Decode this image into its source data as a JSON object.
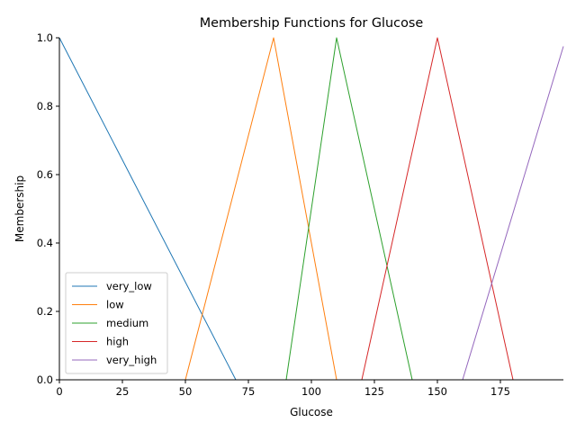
{
  "chart_data": {
    "type": "line",
    "title": "Membership Functions for Glucose",
    "xlabel": "Glucose",
    "ylabel": "Membership",
    "xlim": [
      0,
      200
    ],
    "ylim": [
      0,
      1.0
    ],
    "xticks": [
      0,
      25,
      50,
      75,
      100,
      125,
      150,
      175
    ],
    "yticks": [
      0.0,
      0.2,
      0.4,
      0.6,
      0.8,
      1.0
    ],
    "xtick_labels": [
      "0",
      "25",
      "50",
      "75",
      "100",
      "125",
      "150",
      "175"
    ],
    "ytick_labels": [
      "0.0",
      "0.2",
      "0.4",
      "0.6",
      "0.8",
      "1.0"
    ],
    "grid": false,
    "legend_position": "lower-left",
    "series": [
      {
        "name": "very_low",
        "color": "#1f77b4",
        "x": [
          0,
          70,
          200
        ],
        "y": [
          1,
          0,
          0
        ]
      },
      {
        "name": "low",
        "color": "#ff7f0e",
        "x": [
          0,
          50,
          85,
          110,
          200
        ],
        "y": [
          0,
          0,
          1,
          0,
          0
        ]
      },
      {
        "name": "medium",
        "color": "#2ca02c",
        "x": [
          0,
          90,
          110,
          140,
          200
        ],
        "y": [
          0,
          0,
          1,
          0,
          0
        ]
      },
      {
        "name": "high",
        "color": "#d62728",
        "x": [
          0,
          120,
          150,
          180,
          200
        ],
        "y": [
          0,
          0,
          1,
          0,
          0
        ]
      },
      {
        "name": "very_high",
        "color": "#9467bd",
        "x": [
          0,
          160,
          200
        ],
        "y": [
          0,
          0,
          0.975
        ]
      }
    ]
  }
}
